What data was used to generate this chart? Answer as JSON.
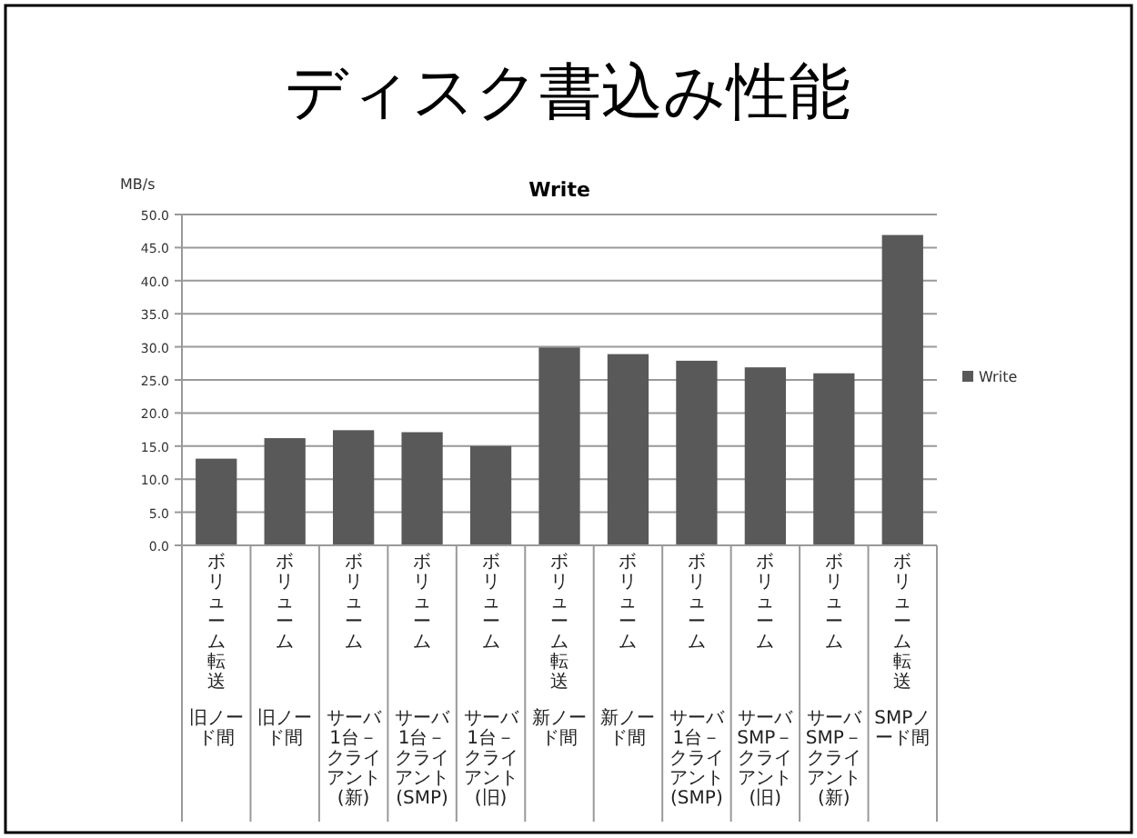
{
  "chart_data": {
    "type": "bar",
    "title": "ディスク書込み性能",
    "subtitle": "Write",
    "ylabel": "MB/s",
    "categories": [
      [
        "ボリューム転送",
        "旧ノード間"
      ],
      [
        "ボリューム",
        "旧ノード間"
      ],
      [
        "ボリューム",
        "サーバ1台－クライアント(新)"
      ],
      [
        "ボリューム",
        "サーバ1台－クライアント(SMP)"
      ],
      [
        "ボリューム",
        "サーバ1台－クライアント(旧)"
      ],
      [
        "ボリューム転送",
        "新ノード間"
      ],
      [
        "ボリューム",
        "新ノード間"
      ],
      [
        "ボリューム",
        "サーバ1台－クライアント(SMP)"
      ],
      [
        "ボリューム",
        "サーバSMP－クライアント(旧)"
      ],
      [
        "ボリューム",
        "サーバSMP－クライアント(新)"
      ],
      [
        "ボリューム転送",
        "SMPノード間"
      ]
    ],
    "series": [
      {
        "name": "Write",
        "color": "#595959",
        "values": [
          13.1,
          16.2,
          17.4,
          17.1,
          15.0,
          29.9,
          28.9,
          27.9,
          26.9,
          26.0,
          46.9
        ]
      }
    ],
    "ylim": [
      0,
      50
    ],
    "yticks": [
      {
        "value": 0,
        "label": "0.0"
      },
      {
        "value": 5,
        "label": "5.0"
      },
      {
        "value": 10,
        "label": "10.0"
      },
      {
        "value": 15,
        "label": "15.0"
      },
      {
        "value": 20,
        "label": "20.0"
      },
      {
        "value": 25,
        "label": "25.0"
      },
      {
        "value": 30,
        "label": "30.0"
      },
      {
        "value": 35,
        "label": "35.0"
      },
      {
        "value": 40,
        "label": "40.0"
      },
      {
        "value": 45,
        "label": "45.0"
      },
      {
        "value": 50,
        "label": "50.0"
      }
    ],
    "grid": "y",
    "legend": "right"
  }
}
